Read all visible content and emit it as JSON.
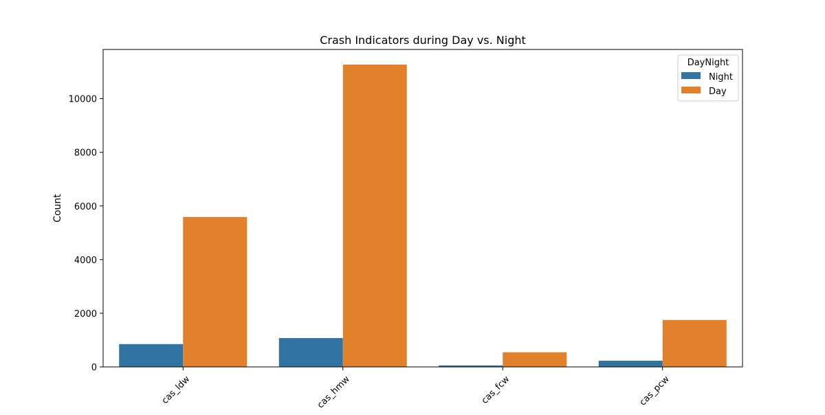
{
  "chart_data": {
    "type": "bar",
    "title": "Crash Indicators during Day vs. Night",
    "xlabel": "",
    "ylabel": "Count",
    "categories": [
      "cas_ldw",
      "cas_hmw",
      "cas_fcw",
      "cas_pcw"
    ],
    "series": [
      {
        "name": "Night",
        "color": "#3274a1",
        "values": [
          850,
          1075,
          55,
          230
        ]
      },
      {
        "name": "Day",
        "color": "#e1812c",
        "values": [
          5590,
          11270,
          545,
          1750
        ]
      }
    ],
    "ylim": [
      0,
      11834
    ],
    "yticks": [
      0,
      2000,
      4000,
      6000,
      8000,
      10000
    ],
    "legend": {
      "title": "DayNight",
      "placement": "top-right"
    },
    "grid": false
  }
}
